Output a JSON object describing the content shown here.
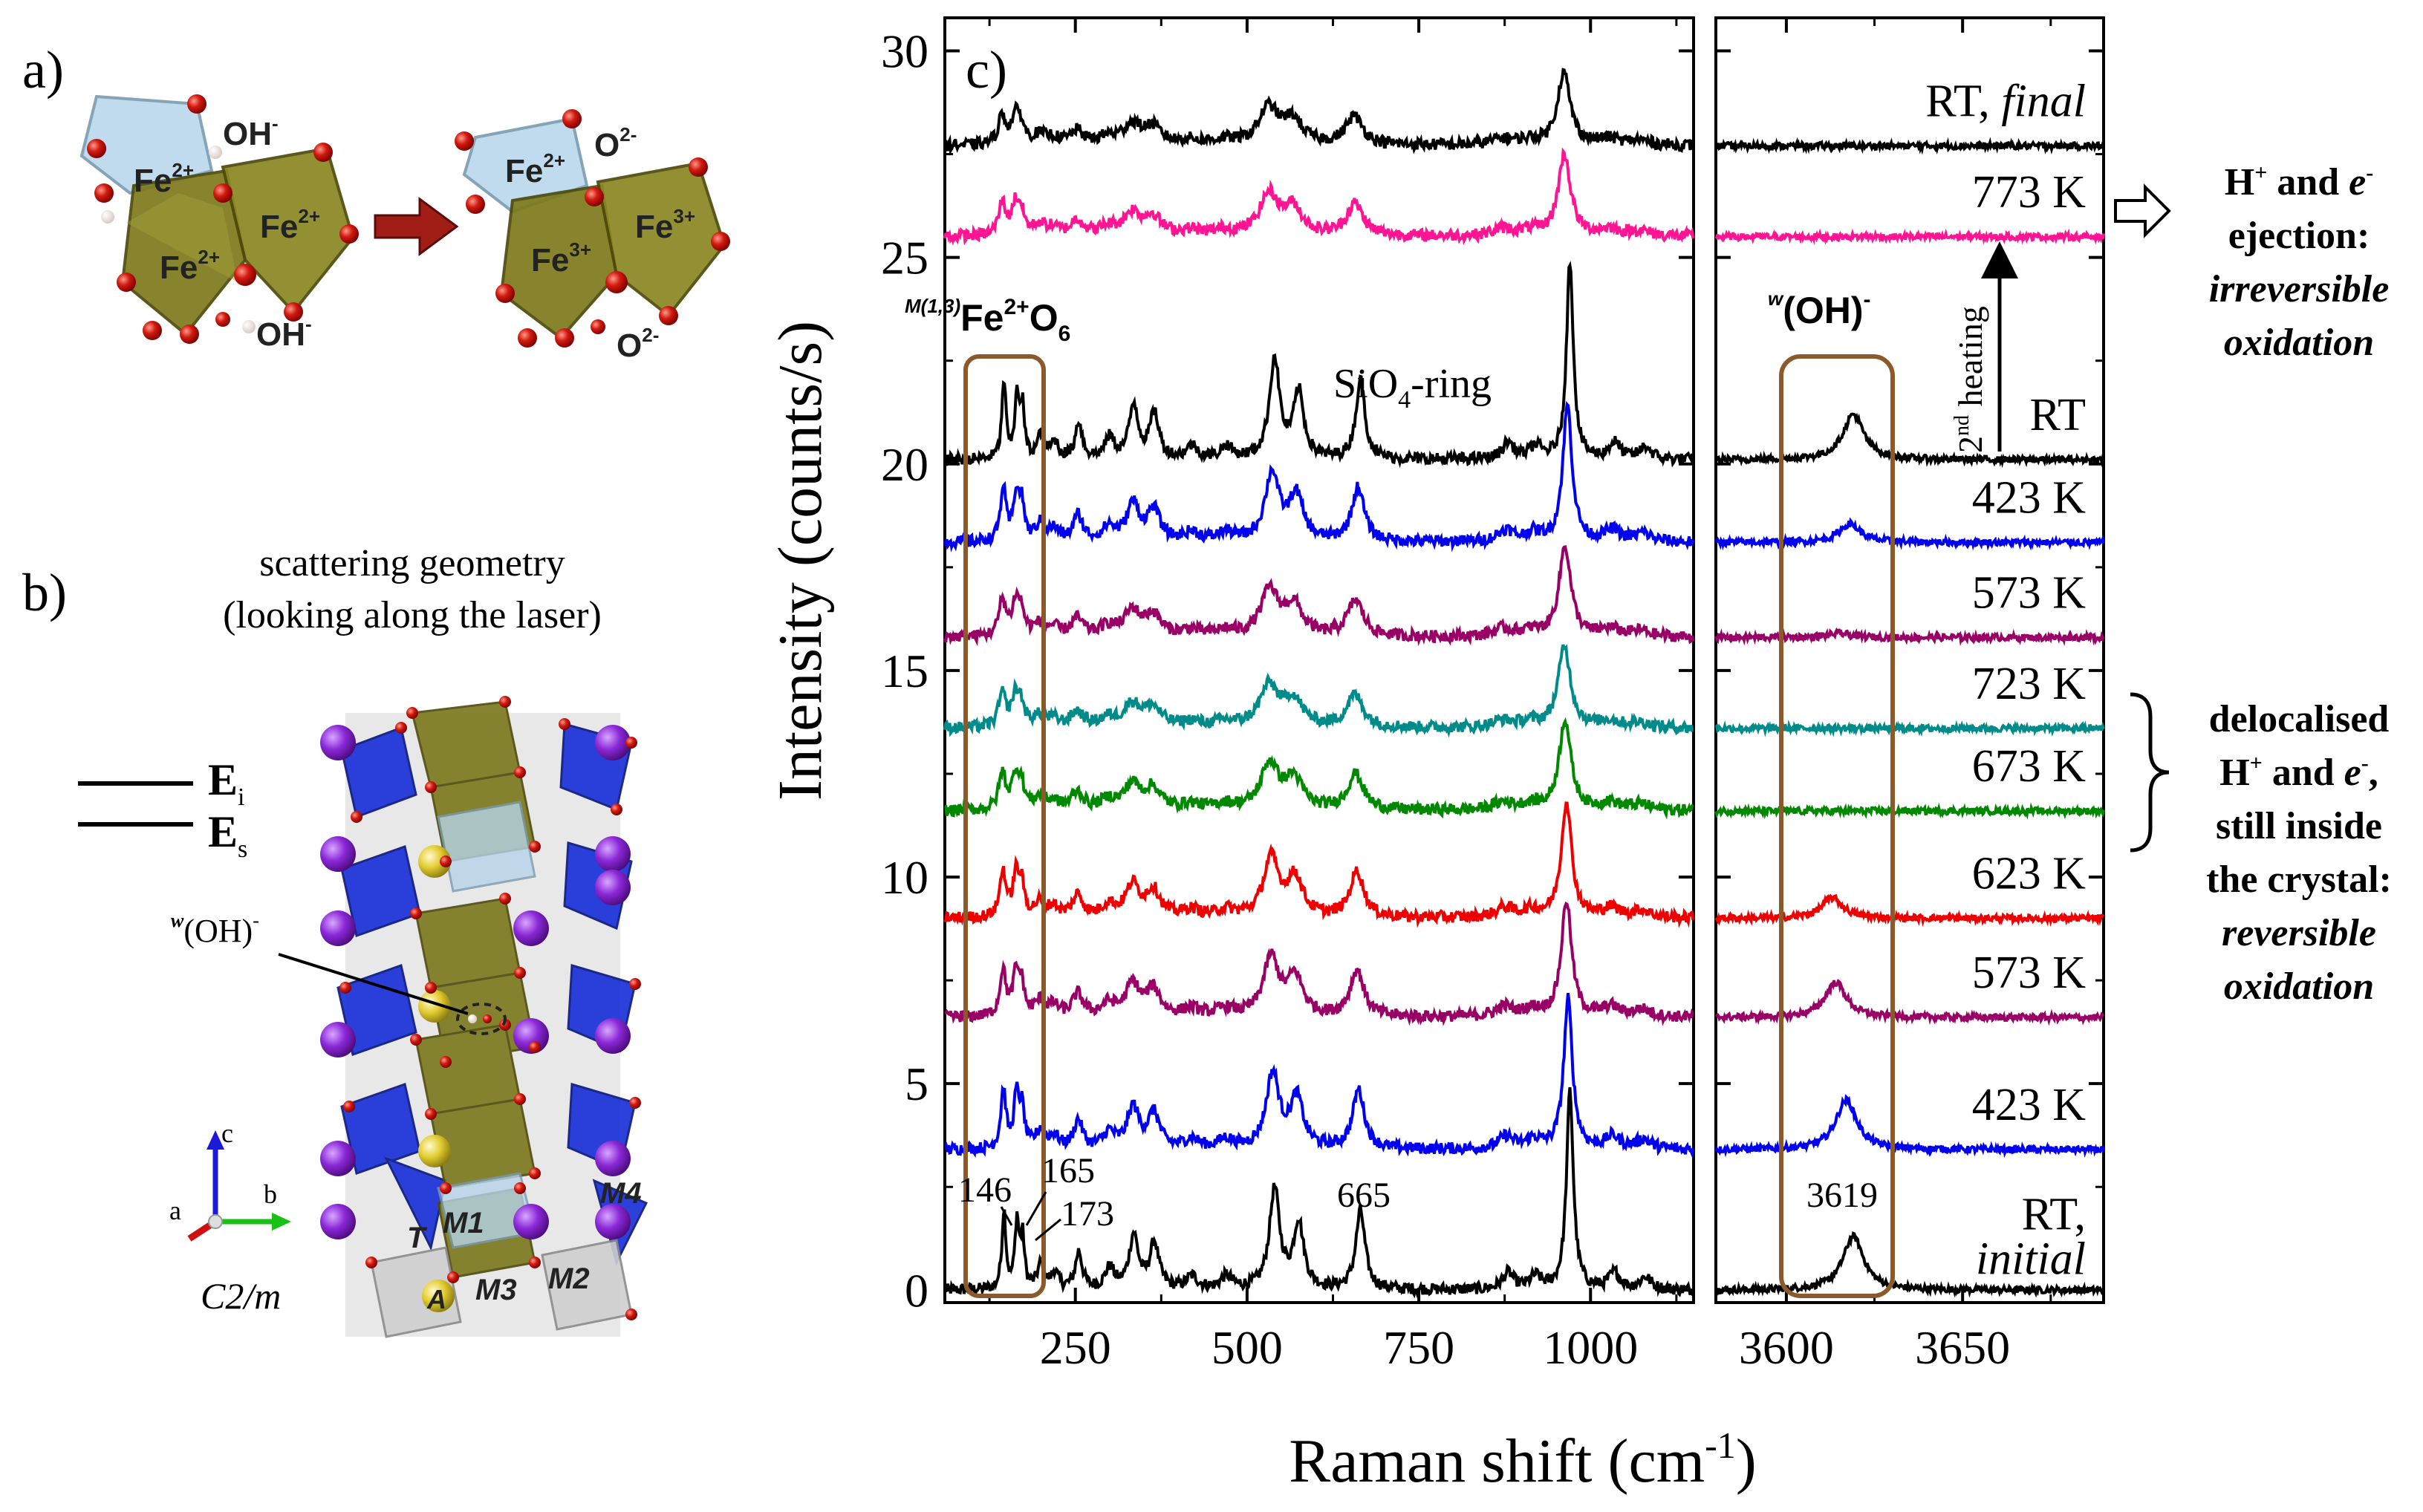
{
  "panels": {
    "a": {
      "label": "a)",
      "before": {
        "ions": [
          "Fe2+",
          "Fe2+",
          "Fe2+"
        ],
        "ligands": [
          "OH-",
          "OH-"
        ]
      },
      "after": {
        "ions": [
          "Fe2+",
          "Fe3+",
          "Fe3+"
        ],
        "ligands": [
          "O2-",
          "O2-"
        ]
      }
    },
    "b": {
      "label": "b)",
      "title_line1": "scattering geometry",
      "title_line2": "(looking along the laser)",
      "Ei": "E",
      "Ei_sub": "i",
      "Es": "E",
      "Es_sub": "s",
      "oh_label_pre": "w",
      "oh_label": "(OH)",
      "oh_label_sup": "-",
      "axes": {
        "a": "a",
        "b": "b",
        "c": "c"
      },
      "space_group": "C2/m",
      "sites": [
        "M1",
        "M4",
        "T",
        "M3",
        "M2",
        "A"
      ]
    },
    "c": {
      "label": "c)"
    }
  },
  "chart_data": {
    "type": "line",
    "panel_label": "c)",
    "ylabel": "Intensity (counts/s)",
    "xlabel_base": "Raman shift (cm",
    "xlabel_sup": "-1",
    "xlabel_close": ")",
    "ylim": [
      -0.3,
      30.8
    ],
    "yticks": [
      0,
      5,
      10,
      15,
      20,
      25,
      30
    ],
    "left_subplot": {
      "xlim": [
        60,
        1150
      ],
      "xticks": [
        250,
        500,
        750,
        1000
      ]
    },
    "right_subplot": {
      "xlim": [
        3580,
        3690
      ],
      "xticks": [
        3600,
        3650
      ]
    },
    "series": [
      {
        "name": "RT, initial",
        "name_main": "RT,",
        "name_sub": "initial",
        "color": "#000000",
        "offset": 0.0,
        "oh_intensity": 1.3,
        "oh_center": 3619,
        "scale": 1.0
      },
      {
        "name": "423 K",
        "color": "#0000ee",
        "offset": 3.4,
        "oh_intensity": 1.2,
        "oh_center": 3617,
        "scale": 0.85
      },
      {
        "name": "573 K",
        "color": "#990066",
        "offset": 6.6,
        "oh_intensity": 0.85,
        "oh_center": 3614,
        "scale": 0.72
      },
      {
        "name": "623 K",
        "color": "#ee0000",
        "offset": 9.0,
        "oh_intensity": 0.5,
        "oh_center": 3613,
        "scale": 0.72
      },
      {
        "name": "673 K",
        "color": "#008800",
        "offset": 11.6,
        "oh_intensity": 0.0,
        "oh_center": 3613,
        "scale": 0.6
      },
      {
        "name": "723 K",
        "color": "#008b8b",
        "offset": 13.6,
        "oh_intensity": 0.0,
        "oh_center": 3613,
        "scale": 0.55
      },
      {
        "name": "573 K",
        "color": "#990066",
        "offset": 15.8,
        "oh_intensity": 0.1,
        "oh_center": 3615,
        "scale": 0.6
      },
      {
        "name": "423 K",
        "color": "#0000ee",
        "offset": 18.1,
        "oh_intensity": 0.45,
        "oh_center": 3618,
        "scale": 0.8
      },
      {
        "name": "RT",
        "color": "#000000",
        "offset": 20.1,
        "oh_intensity": 1.1,
        "oh_center": 3619,
        "scale": 1.0
      },
      {
        "name": "773 K",
        "color": "#ff1493",
        "offset": 25.5,
        "oh_intensity": 0.0,
        "oh_center": 3619,
        "scale": 0.55
      },
      {
        "name": "RT, final",
        "name_main": "RT,",
        "name_sub": "final",
        "color": "#000000",
        "offset": 27.7,
        "oh_intensity": 0.0,
        "oh_center": 3619,
        "scale": 0.5
      }
    ],
    "peaks_cm1": [
      146,
      165,
      173,
      665,
      3619
    ],
    "peak_labels": {
      "p146": "146",
      "p165": "165",
      "p173": "173",
      "p665": "665",
      "p3619": "3619"
    },
    "annotations": {
      "fe_box_pre": "M(1,3)",
      "fe_box_main": "Fe",
      "fe_box_sup": "2+",
      "fe_box_o": "O",
      "fe_box_sub": "6",
      "sio4": "SiO",
      "sio4_sub": "4",
      "sio4_rest": "-ring",
      "oh_box_pre": "w",
      "oh_box_main": "(OH)",
      "oh_box_sup": "-",
      "second_heating_sup": "nd",
      "second_heating_pre": "2",
      "second_heating": " heating",
      "ejection_line1": "H",
      "ejection_line1_sup": "+",
      "ejection_line1_rest": " and ",
      "ejection_e": "e",
      "ejection_e_sup": "-",
      "ejection_line2": "ejection:",
      "ejection_line3": "irreversible",
      "ejection_line4": "oxidation",
      "deloc_line1": "delocalised",
      "deloc_line2_h": "H",
      "deloc_line2_sup": "+",
      "deloc_line2_rest": " and ",
      "deloc_line2_e": "e",
      "deloc_line2_esup": "-",
      "deloc_line2_end": ",",
      "deloc_line3": "still inside",
      "deloc_line4": "the crystal:",
      "deloc_line5": "reversible",
      "deloc_line6": "oxidation"
    }
  }
}
